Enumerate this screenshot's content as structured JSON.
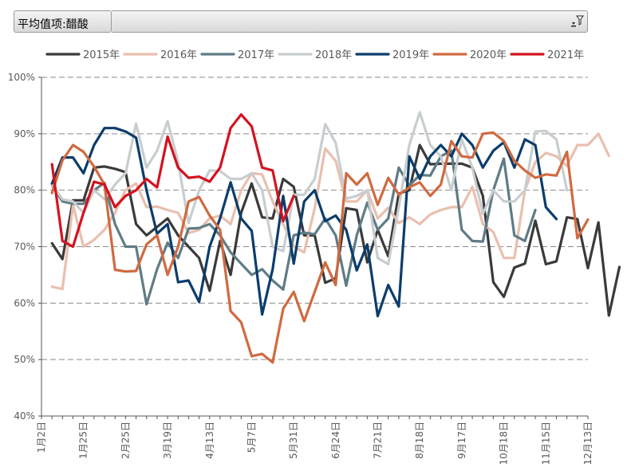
{
  "pivot_field": {
    "label": "平均值项:醋酸"
  },
  "chart_data": {
    "type": "line",
    "title": "",
    "xlabel": "",
    "ylabel": "",
    "ylim": [
      0.4,
      1.0
    ],
    "y_ticks": [
      "40%",
      "50%",
      "60%",
      "70%",
      "80%",
      "90%",
      "100%"
    ],
    "x_range": [
      1,
      53
    ],
    "x_ticks": [
      {
        "label": "1月2日",
        "week": 1
      },
      {
        "label": "1月25日",
        "week": 5
      },
      {
        "label": "2月25日",
        "week": 9
      },
      {
        "label": "3月19日",
        "week": 13
      },
      {
        "label": "4月13日",
        "week": 17
      },
      {
        "label": "5月7日",
        "week": 21
      },
      {
        "label": "5月31日",
        "week": 25
      },
      {
        "label": "6月24日",
        "week": 29
      },
      {
        "label": "7月21日",
        "week": 33
      },
      {
        "label": "8月18日",
        "week": 37
      },
      {
        "label": "9月17日",
        "week": 41
      },
      {
        "label": "10月18日",
        "week": 45
      },
      {
        "label": "11月15日",
        "week": 49
      },
      {
        "label": "12月13日",
        "week": 53
      }
    ],
    "grid": "horizontal dashed",
    "legend_position": "top",
    "series": [
      {
        "name": "2015年",
        "color": "#3a3a3a",
        "values": [
          null,
          0.706,
          0.678,
          0.782,
          0.782,
          0.84,
          0.842,
          0.838,
          0.832,
          0.74,
          0.72,
          0.735,
          0.75,
          0.72,
          0.7,
          0.68,
          0.622,
          0.71,
          0.65,
          0.76,
          0.812,
          0.752,
          0.75,
          0.82,
          0.806,
          0.72,
          0.72,
          0.636,
          0.644,
          0.768,
          0.765,
          0.672,
          0.73,
          0.683,
          0.794,
          0.8,
          0.88,
          0.846,
          0.847,
          0.847,
          0.847,
          0.84,
          0.79,
          0.637,
          0.611,
          0.663,
          0.67,
          0.746,
          0.669,
          0.674,
          0.752,
          0.749,
          0.662,
          0.743,
          0.578,
          0.664
        ]
      },
      {
        "name": "2016年",
        "color": "#e9bfae",
        "values": [
          null,
          0.629,
          0.625,
          0.774,
          0.7,
          0.712,
          0.73,
          0.76,
          0.8,
          0.812,
          0.77,
          0.771,
          0.765,
          0.76,
          0.724,
          0.73,
          0.75,
          0.755,
          0.74,
          0.8,
          0.83,
          0.828,
          0.78,
          0.74,
          0.7,
          0.69,
          0.768,
          0.874,
          0.852,
          0.78,
          0.78,
          0.8,
          0.75,
          0.769,
          0.742,
          0.752,
          0.74,
          0.757,
          0.765,
          0.77,
          0.77,
          0.806,
          0.74,
          0.726,
          0.68,
          0.68,
          0.8,
          0.85,
          0.866,
          0.86,
          0.843,
          0.88,
          0.88,
          0.9,
          0.861
        ]
      },
      {
        "name": "2017年",
        "color": "#5f7c86",
        "values": [
          null,
          0.809,
          0.78,
          0.776,
          0.776,
          0.8,
          0.813,
          0.74,
          0.7,
          0.7,
          0.598,
          0.66,
          0.707,
          0.68,
          0.732,
          0.733,
          0.74,
          0.72,
          0.69,
          0.67,
          0.65,
          0.66,
          0.64,
          0.624,
          0.72,
          0.725,
          0.722,
          0.75,
          0.72,
          0.631,
          0.72,
          0.778,
          0.73,
          0.75,
          0.84,
          0.808,
          0.827,
          0.826,
          0.86,
          0.87,
          0.73,
          0.71,
          0.709,
          0.8,
          0.856,
          0.72,
          0.71,
          0.765
        ]
      },
      {
        "name": "2018年",
        "color": "#c8cdd0",
        "values": [
          null,
          0.81,
          0.784,
          0.78,
          0.76,
          0.8,
          0.784,
          0.81,
          0.83,
          0.918,
          0.84,
          0.87,
          0.922,
          0.85,
          0.742,
          0.8,
          0.835,
          0.834,
          0.82,
          0.82,
          0.83,
          0.8,
          0.7,
          0.692,
          0.792,
          0.792,
          0.82,
          0.917,
          0.884,
          0.785,
          0.79,
          0.8,
          0.68,
          0.669,
          0.77,
          0.88,
          0.938,
          0.88,
          0.86,
          0.8,
          0.89,
          0.84,
          0.758,
          0.8,
          0.78,
          0.78,
          0.8,
          0.904,
          0.905,
          0.89,
          0.8
        ]
      },
      {
        "name": "2019年",
        "color": "#0b3d6b",
        "values": [
          null,
          0.812,
          0.858,
          0.858,
          0.83,
          0.88,
          0.91,
          0.91,
          0.904,
          0.893,
          0.8,
          0.723,
          0.74,
          0.637,
          0.64,
          0.602,
          0.7,
          0.75,
          0.814,
          0.75,
          0.728,
          0.58,
          0.66,
          0.79,
          0.67,
          0.78,
          0.8,
          0.745,
          0.755,
          0.73,
          0.658,
          0.704,
          0.577,
          0.632,
          0.594,
          0.86,
          0.82,
          0.86,
          0.88,
          0.86,
          0.9,
          0.88,
          0.84,
          0.87,
          0.885,
          0.84,
          0.89,
          0.88,
          0.77,
          0.749
        ]
      },
      {
        "name": "2020年",
        "color": "#d06a40",
        "values": [
          null,
          0.795,
          0.853,
          0.88,
          0.868,
          0.842,
          0.81,
          0.659,
          0.656,
          0.657,
          0.704,
          0.72,
          0.65,
          0.7,
          0.78,
          0.788,
          0.755,
          0.73,
          0.586,
          0.566,
          0.506,
          0.51,
          0.495,
          0.59,
          0.62,
          0.568,
          0.62,
          0.672,
          0.632,
          0.83,
          0.81,
          0.83,
          0.774,
          0.822,
          0.792,
          0.805,
          0.814,
          0.79,
          0.81,
          0.887,
          0.86,
          0.858,
          0.9,
          0.902,
          0.887,
          0.852,
          0.835,
          0.822,
          0.828,
          0.826,
          0.868,
          0.715,
          0.748
        ]
      },
      {
        "name": "2021年",
        "color": "#d4121f",
        "values": [
          null,
          0.846,
          0.71,
          0.7,
          0.76,
          0.815,
          0.81,
          0.77,
          0.79,
          0.8,
          0.82,
          0.805,
          0.895,
          0.84,
          0.822,
          0.824,
          0.815,
          0.84,
          0.91,
          0.934,
          0.913,
          0.84,
          0.835,
          0.745,
          0.79
        ]
      }
    ]
  }
}
